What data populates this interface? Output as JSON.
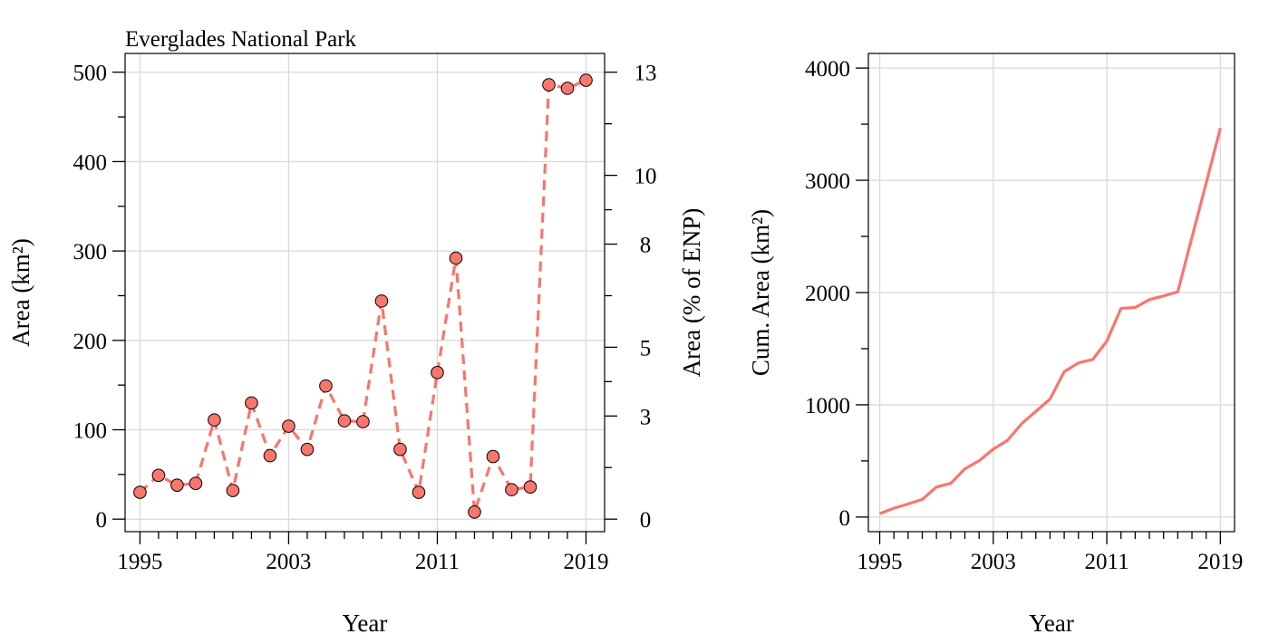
{
  "chart_data": [
    {
      "type": "line",
      "title": "Everglades National Park",
      "xlabel": "Year",
      "ylabel": "Area (km²)",
      "y2label": "Area (% of ENP)",
      "x_ticks": [
        1995,
        2003,
        2011,
        2019
      ],
      "y_ticks": [
        0,
        100,
        200,
        300,
        400,
        500
      ],
      "y2_ticks": [
        0,
        3,
        5,
        8,
        10,
        13
      ],
      "xlim": [
        1994.2,
        2020.0
      ],
      "ylim": [
        -14,
        521
      ],
      "grid": true,
      "line_style": "dashed",
      "markers": "circle",
      "color": "#f8766d",
      "x": [
        1995,
        1996,
        1997,
        1998,
        1999,
        2000,
        2001,
        2002,
        2003,
        2004,
        2005,
        2006,
        2007,
        2008,
        2009,
        2010,
        2011,
        2012,
        2013,
        2014,
        2015,
        2016,
        2017,
        2018,
        2019
      ],
      "y": [
        30,
        49,
        38,
        40,
        111,
        32,
        130,
        71,
        104,
        78,
        149,
        110,
        109,
        244,
        78,
        30,
        164,
        292,
        8,
        70,
        33,
        36,
        486,
        482,
        491
      ]
    },
    {
      "type": "line",
      "title": "",
      "xlabel": "Year",
      "ylabel": "Cum. Area (km²)",
      "x_ticks": [
        1995,
        2003,
        2011,
        2019
      ],
      "y_ticks": [
        0,
        1000,
        2000,
        3000,
        4000
      ],
      "xlim": [
        1994.2,
        2020.0
      ],
      "ylim": [
        -130,
        4130
      ],
      "grid": true,
      "line_style": "solid",
      "color": "#f8766d",
      "x": [
        1995,
        1996,
        1997,
        1998,
        1999,
        2000,
        2001,
        2002,
        2003,
        2004,
        2005,
        2006,
        2007,
        2008,
        2009,
        2010,
        2011,
        2012,
        2013,
        2014,
        2015,
        2016,
        2017,
        2018,
        2019
      ],
      "y": [
        30,
        79,
        117,
        157,
        268,
        300,
        430,
        501,
        605,
        683,
        832,
        942,
        1051,
        1295,
        1373,
        1403,
        1567,
        1859,
        1867,
        1937,
        1970,
        2006,
        2492,
        2974,
        3465
      ]
    }
  ]
}
